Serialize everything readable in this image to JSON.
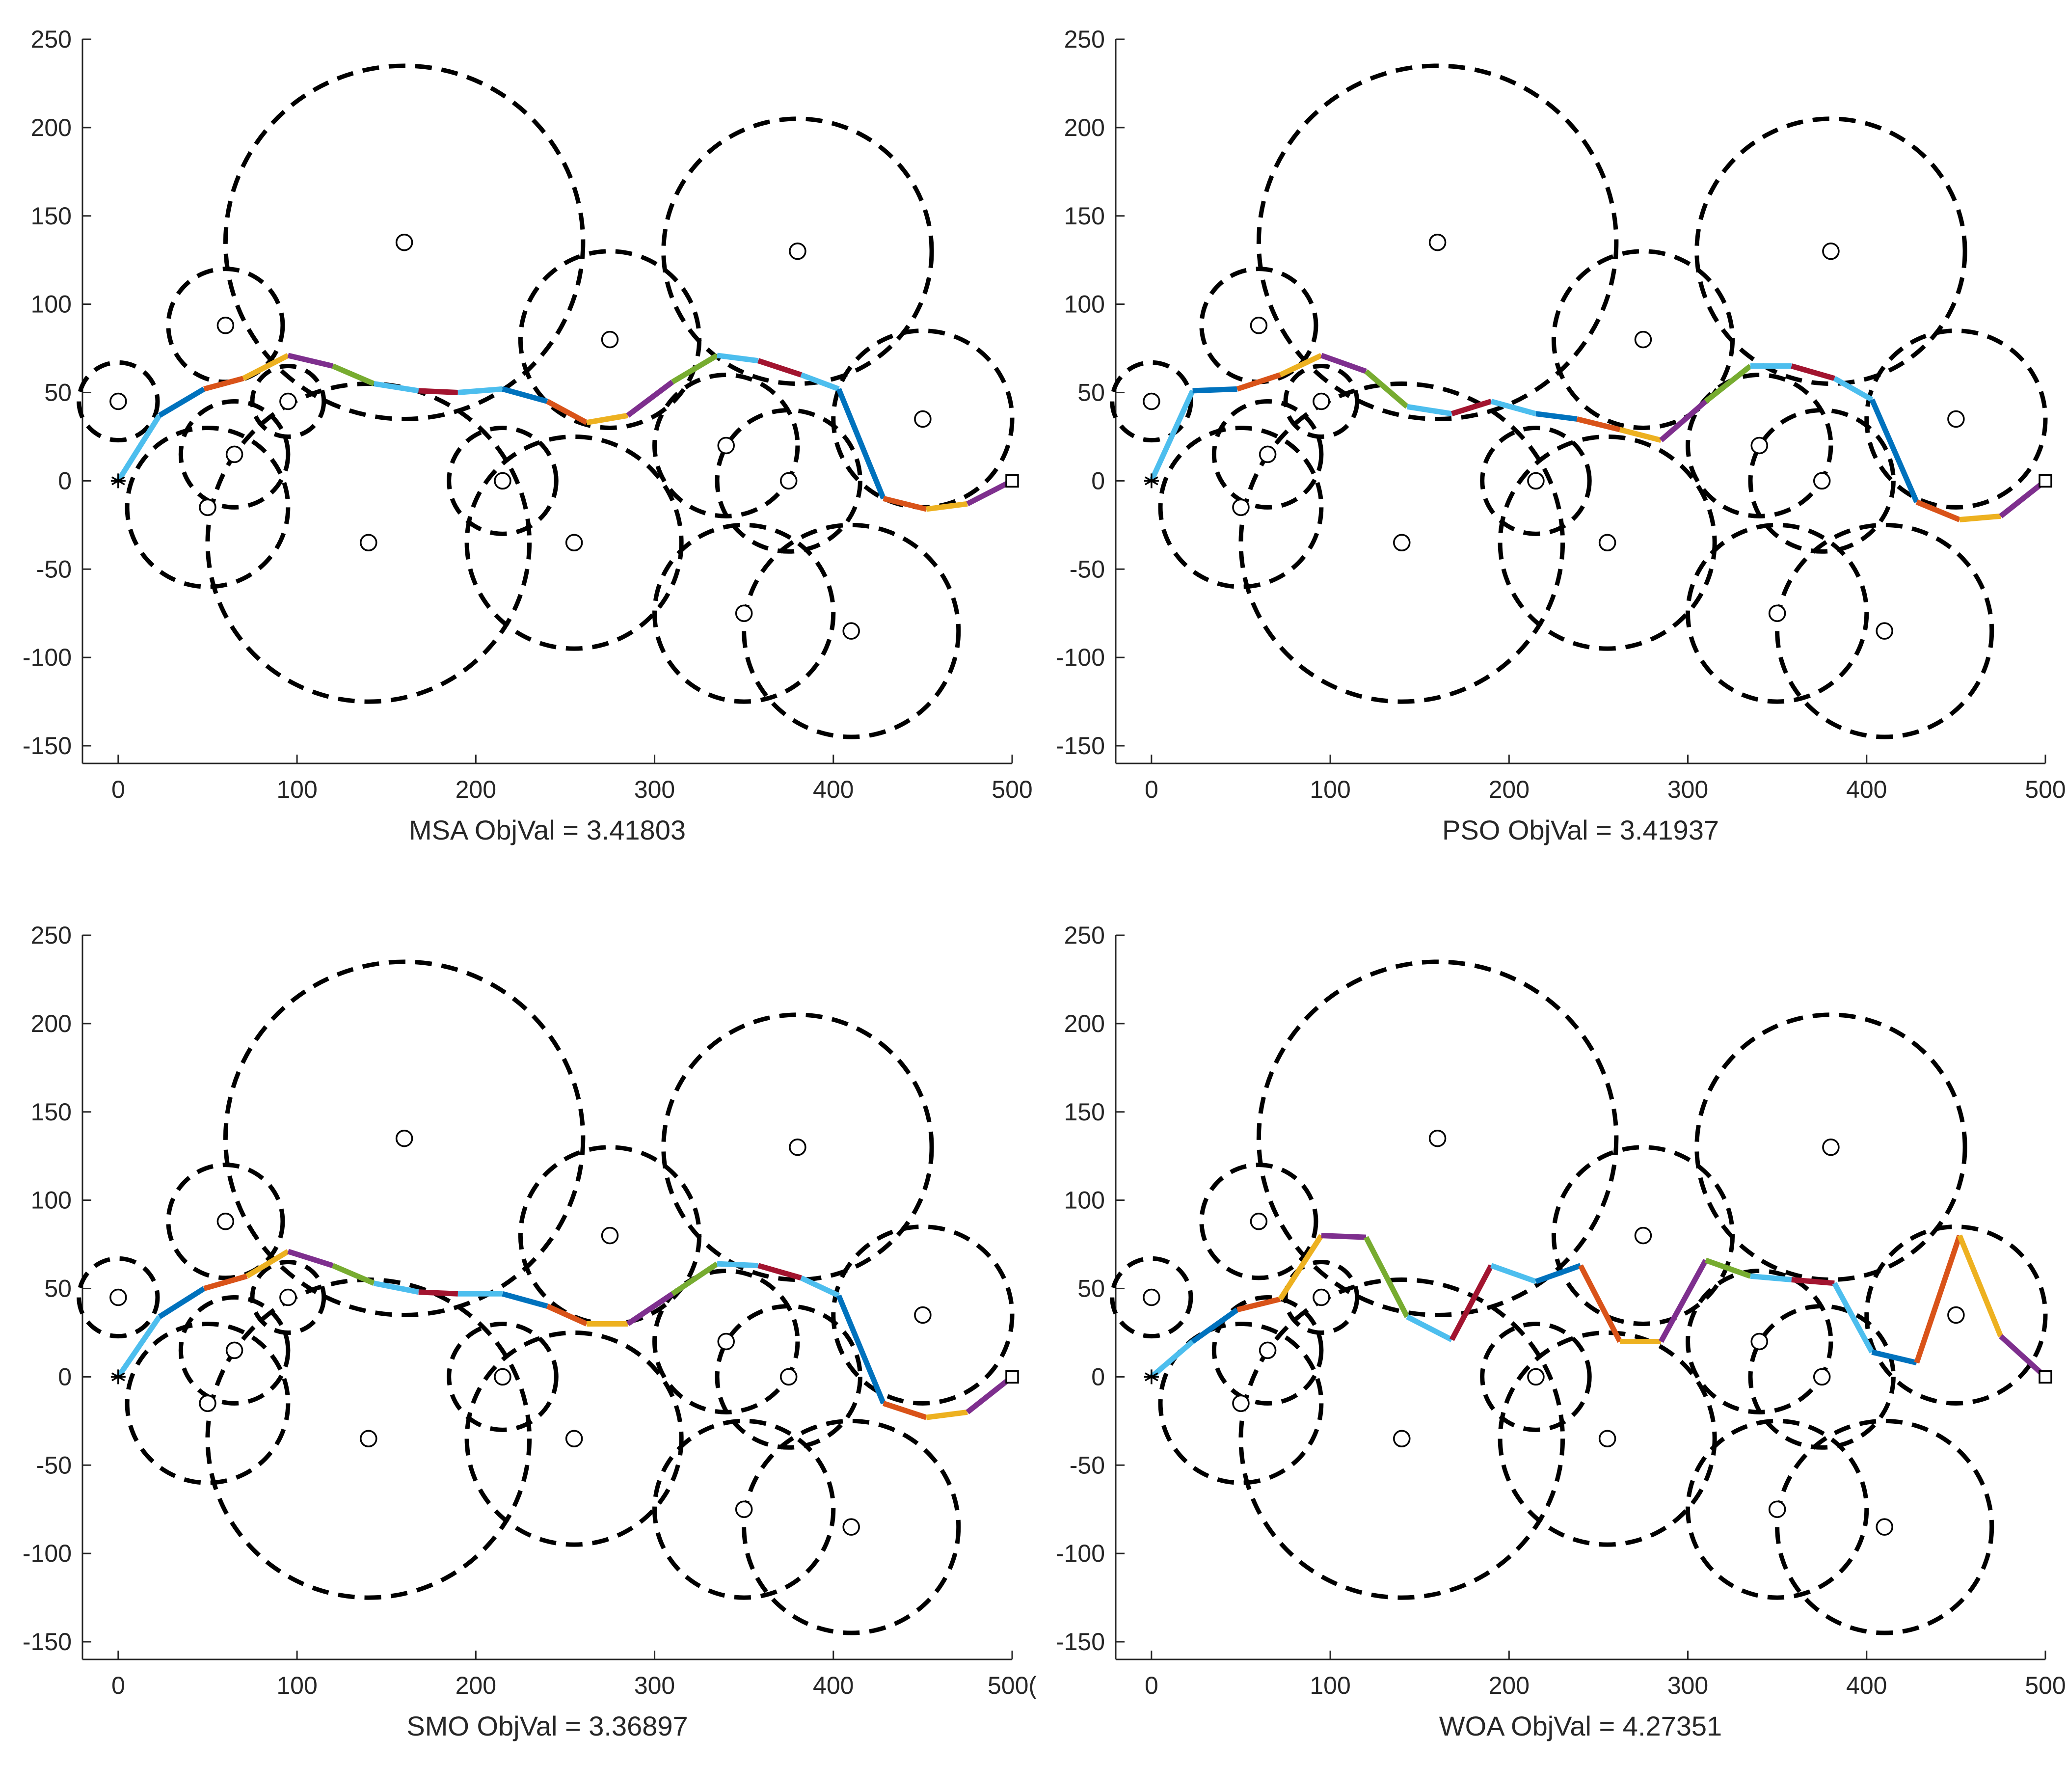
{
  "chart_data": {
    "type": "line",
    "description_free": true,
    "xlim": [
      -20,
      500
    ],
    "ylim": [
      -160,
      250
    ],
    "x_ticks": [
      0,
      100,
      200,
      300,
      400,
      500
    ],
    "y_ticks": [
      250,
      200,
      150,
      100,
      50,
      0,
      -50,
      -100,
      -150
    ],
    "start": [
      0,
      0
    ],
    "goal": [
      500,
      0
    ],
    "segment_colors": [
      "#4DBEEE",
      "#0072BD",
      "#D95319",
      "#EDB120",
      "#7E2F8E",
      "#77AC30",
      "#4DBEEE",
      "#A2142F"
    ],
    "threats": [
      {
        "cx": 0,
        "cy": 45,
        "r": 22
      },
      {
        "cx": 60,
        "cy": 88,
        "r": 32
      },
      {
        "cx": 65,
        "cy": 15,
        "r": 30
      },
      {
        "cx": 50,
        "cy": -15,
        "r": 45
      },
      {
        "cx": 95,
        "cy": 45,
        "r": 20
      },
      {
        "cx": 160,
        "cy": 135,
        "r": 100
      },
      {
        "cx": 140,
        "cy": -35,
        "r": 90
      },
      {
        "cx": 215,
        "cy": 0,
        "r": 30
      },
      {
        "cx": 275,
        "cy": 80,
        "r": 50
      },
      {
        "cx": 255,
        "cy": -35,
        "r": 60
      },
      {
        "cx": 340,
        "cy": 20,
        "r": 40
      },
      {
        "cx": 380,
        "cy": 130,
        "r": 75
      },
      {
        "cx": 375,
        "cy": 0,
        "r": 40
      },
      {
        "cx": 450,
        "cy": 35,
        "r": 50
      },
      {
        "cx": 350,
        "cy": -75,
        "r": 50
      },
      {
        "cx": 410,
        "cy": -85,
        "r": 60
      }
    ],
    "series": [
      {
        "name": "MSA",
        "caption": "MSA  ObjVal = 3.41803",
        "x_tick_labels": [
          "0",
          "100",
          "200",
          "300",
          "400",
          "500"
        ],
        "path": [
          [
            0,
            0
          ],
          [
            23,
            37
          ],
          [
            48,
            52
          ],
          [
            70,
            58
          ],
          [
            95,
            71
          ],
          [
            120,
            65
          ],
          [
            143,
            55
          ],
          [
            168,
            51
          ],
          [
            190,
            50
          ],
          [
            215,
            52
          ],
          [
            240,
            45
          ],
          [
            262,
            33
          ],
          [
            285,
            37
          ],
          [
            310,
            56
          ],
          [
            335,
            71
          ],
          [
            358,
            68
          ],
          [
            382,
            60
          ],
          [
            403,
            52
          ],
          [
            428,
            -10
          ],
          [
            452,
            -16
          ],
          [
            475,
            -13
          ],
          [
            500,
            0
          ]
        ]
      },
      {
        "name": "PSO",
        "caption": "PSO  ObjVal = 3.41937",
        "x_tick_labels": [
          "0",
          "100",
          "200",
          "300",
          "400",
          "500"
        ],
        "path": [
          [
            0,
            0
          ],
          [
            23,
            51
          ],
          [
            48,
            52
          ],
          [
            72,
            60
          ],
          [
            95,
            71
          ],
          [
            120,
            62
          ],
          [
            143,
            42
          ],
          [
            168,
            38
          ],
          [
            190,
            45
          ],
          [
            215,
            38
          ],
          [
            238,
            35
          ],
          [
            262,
            29
          ],
          [
            285,
            23
          ],
          [
            310,
            45
          ],
          [
            335,
            65
          ],
          [
            358,
            65
          ],
          [
            382,
            58
          ],
          [
            403,
            46
          ],
          [
            428,
            -12
          ],
          [
            452,
            -22
          ],
          [
            475,
            -20
          ],
          [
            500,
            0
          ]
        ]
      },
      {
        "name": "SMO",
        "caption": "SMO  ObjVal = 3.36897",
        "x_tick_labels": [
          "0",
          "100",
          "200",
          "300",
          "400",
          "500("
        ],
        "path": [
          [
            0,
            0
          ],
          [
            23,
            34
          ],
          [
            48,
            50
          ],
          [
            72,
            57
          ],
          [
            95,
            71
          ],
          [
            120,
            63
          ],
          [
            143,
            53
          ],
          [
            168,
            48
          ],
          [
            190,
            47
          ],
          [
            215,
            47
          ],
          [
            240,
            40
          ],
          [
            262,
            30
          ],
          [
            285,
            30
          ],
          [
            310,
            47
          ],
          [
            335,
            64
          ],
          [
            358,
            63
          ],
          [
            382,
            56
          ],
          [
            403,
            46
          ],
          [
            428,
            -15
          ],
          [
            452,
            -23
          ],
          [
            475,
            -20
          ],
          [
            500,
            0
          ]
        ]
      },
      {
        "name": "WOA",
        "caption": "WOA  ObjVal = 4.27351",
        "x_tick_labels": [
          "0",
          "100",
          "200",
          "300",
          "400",
          "500"
        ],
        "path": [
          [
            0,
            0
          ],
          [
            23,
            20
          ],
          [
            48,
            38
          ],
          [
            72,
            44
          ],
          [
            95,
            80
          ],
          [
            120,
            79
          ],
          [
            143,
            34
          ],
          [
            168,
            21
          ],
          [
            190,
            63
          ],
          [
            215,
            54
          ],
          [
            240,
            63
          ],
          [
            262,
            20
          ],
          [
            285,
            20
          ],
          [
            310,
            66
          ],
          [
            335,
            57
          ],
          [
            358,
            55
          ],
          [
            382,
            53
          ],
          [
            403,
            14
          ],
          [
            428,
            8
          ],
          [
            452,
            80
          ],
          [
            475,
            23
          ],
          [
            500,
            0
          ]
        ]
      }
    ]
  }
}
